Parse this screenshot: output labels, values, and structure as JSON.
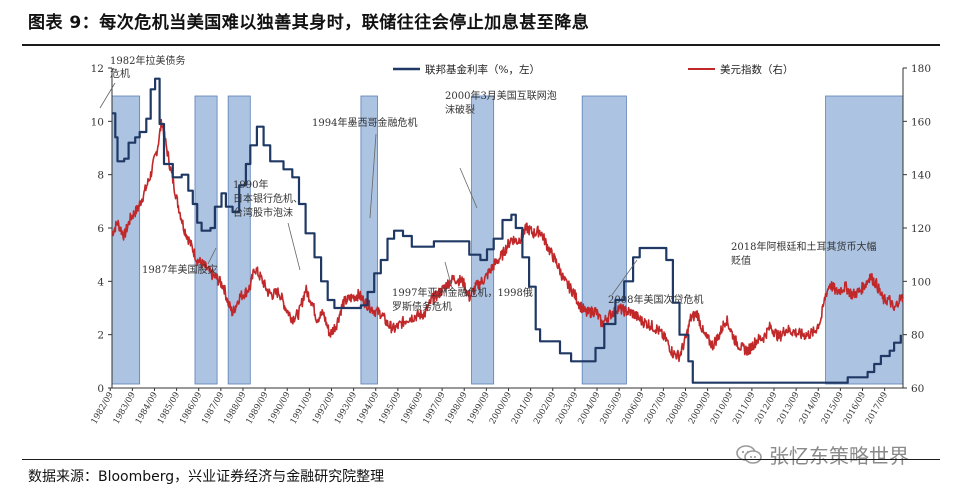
{
  "header": {
    "title": "图表 9：每次危机当美国难以独善其身时，联储往往会停止加息甚至降息"
  },
  "footer": {
    "source": "数据来源：Bloomberg，兴业证券经济与金融研究院整理"
  },
  "watermark": {
    "text": "张忆东策略世界",
    "icon": "wechat-icon"
  },
  "chart_data": {
    "type": "line",
    "title": "",
    "xlabel": "",
    "x_range": [
      1982.75,
      2018.5
    ],
    "ylim_left": [
      0,
      12
    ],
    "ylim_right": [
      60,
      180
    ],
    "left_ticks": [
      "0",
      "2",
      "4",
      "6",
      "8",
      "10",
      "12"
    ],
    "right_ticks": [
      "60",
      "80",
      "100",
      "120",
      "140",
      "160",
      "180"
    ],
    "x_ticks": [
      "1982/09",
      "1983/09",
      "1984/09",
      "1985/09",
      "1986/09",
      "1987/09",
      "1988/09",
      "1989/09",
      "1990/09",
      "1991/09",
      "1992/09",
      "1993/09",
      "1994/09",
      "1995/09",
      "1996/09",
      "1997/09",
      "1998/09",
      "1999/09",
      "2000/09",
      "2001/09",
      "2002/09",
      "2003/09",
      "2004/09",
      "2005/09",
      "2006/09",
      "2007/09",
      "2008/09",
      "2009/09",
      "2010/09",
      "2011/09",
      "2012/09",
      "2013/09",
      "2014/09",
      "2015/09",
      "2016/09",
      "2017/09"
    ],
    "colors": {
      "fed": "#1f3864",
      "dxy": "#c0282a",
      "band": "#9db8dc",
      "band_edge": "#5b7fb6"
    },
    "legend": [
      {
        "name": "联邦基金利率（%，左）",
        "color": "#1f3864",
        "placement": "top"
      },
      {
        "name": "美元指数（右）",
        "color": "#c0282a",
        "placement": "top"
      }
    ],
    "shaded_periods": [
      [
        1982.75,
        1984.0
      ],
      [
        1986.5,
        1987.5
      ],
      [
        1988.0,
        1989.0
      ],
      [
        1994.0,
        1994.75
      ],
      [
        1999.0,
        2000.0
      ],
      [
        2004.0,
        2006.0
      ],
      [
        2015.0,
        2018.5
      ]
    ],
    "series": [
      {
        "name": "联邦基金利率（%，左）",
        "axis": "left",
        "points": [
          [
            1982.75,
            10.3
          ],
          [
            1982.9,
            9.4
          ],
          [
            1983.0,
            8.5
          ],
          [
            1983.3,
            8.6
          ],
          [
            1983.5,
            9.2
          ],
          [
            1983.8,
            9.4
          ],
          [
            1984.0,
            9.6
          ],
          [
            1984.3,
            10.1
          ],
          [
            1984.5,
            11.2
          ],
          [
            1984.7,
            11.6
          ],
          [
            1984.9,
            9.9
          ],
          [
            1985.1,
            8.4
          ],
          [
            1985.5,
            7.9
          ],
          [
            1985.9,
            8.0
          ],
          [
            1986.2,
            7.4
          ],
          [
            1986.4,
            6.9
          ],
          [
            1986.6,
            6.2
          ],
          [
            1986.8,
            5.9
          ],
          [
            1987.2,
            6.0
          ],
          [
            1987.4,
            6.8
          ],
          [
            1987.7,
            7.3
          ],
          [
            1987.9,
            6.8
          ],
          [
            1988.2,
            6.6
          ],
          [
            1988.5,
            7.6
          ],
          [
            1988.8,
            8.4
          ],
          [
            1989.0,
            9.1
          ],
          [
            1989.3,
            9.8
          ],
          [
            1989.6,
            9.1
          ],
          [
            1989.9,
            8.5
          ],
          [
            1990.5,
            8.2
          ],
          [
            1990.9,
            7.9
          ],
          [
            1991.2,
            6.9
          ],
          [
            1991.5,
            5.8
          ],
          [
            1991.9,
            4.9
          ],
          [
            1992.2,
            4.0
          ],
          [
            1992.5,
            3.3
          ],
          [
            1992.8,
            3.0
          ],
          [
            1993.5,
            3.0
          ],
          [
            1994.0,
            3.1
          ],
          [
            1994.3,
            3.6
          ],
          [
            1994.6,
            4.3
          ],
          [
            1994.9,
            4.8
          ],
          [
            1995.2,
            5.6
          ],
          [
            1995.5,
            5.9
          ],
          [
            1995.9,
            5.7
          ],
          [
            1996.3,
            5.3
          ],
          [
            1997.0,
            5.3
          ],
          [
            1997.3,
            5.5
          ],
          [
            1998.0,
            5.5
          ],
          [
            1998.7,
            5.5
          ],
          [
            1998.9,
            5.0
          ],
          [
            1999.4,
            4.8
          ],
          [
            1999.7,
            5.2
          ],
          [
            2000.0,
            5.6
          ],
          [
            2000.4,
            6.3
          ],
          [
            2000.8,
            6.5
          ],
          [
            2001.0,
            6.0
          ],
          [
            2001.3,
            4.9
          ],
          [
            2001.6,
            3.8
          ],
          [
            2001.9,
            2.2
          ],
          [
            2002.1,
            1.75
          ],
          [
            2002.8,
            1.75
          ],
          [
            2003.0,
            1.3
          ],
          [
            2003.5,
            1.0
          ],
          [
            2004.3,
            1.0
          ],
          [
            2004.6,
            1.5
          ],
          [
            2005.0,
            2.4
          ],
          [
            2005.5,
            3.3
          ],
          [
            2005.9,
            4.0
          ],
          [
            2006.3,
            4.9
          ],
          [
            2006.6,
            5.25
          ],
          [
            2007.5,
            5.25
          ],
          [
            2007.8,
            4.8
          ],
          [
            2008.1,
            3.2
          ],
          [
            2008.4,
            2.0
          ],
          [
            2008.8,
            1.0
          ],
          [
            2009.0,
            0.2
          ],
          [
            2015.9,
            0.2
          ],
          [
            2016.0,
            0.4
          ],
          [
            2016.9,
            0.6
          ],
          [
            2017.2,
            0.9
          ],
          [
            2017.5,
            1.2
          ],
          [
            2017.9,
            1.4
          ],
          [
            2018.1,
            1.7
          ],
          [
            2018.4,
            2.0
          ]
        ]
      },
      {
        "name": "美元指数（右）",
        "axis": "right",
        "points": [
          [
            1982.75,
            118
          ],
          [
            1983.0,
            122
          ],
          [
            1983.3,
            117
          ],
          [
            1983.6,
            124
          ],
          [
            1983.9,
            127
          ],
          [
            1984.2,
            133
          ],
          [
            1984.5,
            140
          ],
          [
            1984.8,
            150
          ],
          [
            1985.0,
            160
          ],
          [
            1985.15,
            153
          ],
          [
            1985.4,
            142
          ],
          [
            1985.7,
            130
          ],
          [
            1986.0,
            120
          ],
          [
            1986.3,
            114
          ],
          [
            1986.6,
            108
          ],
          [
            1986.9,
            106
          ],
          [
            1987.2,
            103
          ],
          [
            1987.5,
            101
          ],
          [
            1987.8,
            98
          ],
          [
            1988.0,
            92
          ],
          [
            1988.2,
            88
          ],
          [
            1988.5,
            94
          ],
          [
            1988.8,
            96
          ],
          [
            1989.0,
            98
          ],
          [
            1989.2,
            105
          ],
          [
            1989.5,
            101
          ],
          [
            1989.8,
            96
          ],
          [
            1990.0,
            95
          ],
          [
            1990.3,
            96
          ],
          [
            1990.6,
            90
          ],
          [
            1990.9,
            86
          ],
          [
            1991.2,
            88
          ],
          [
            1991.5,
            97
          ],
          [
            1991.8,
            92
          ],
          [
            1992.0,
            86
          ],
          [
            1992.3,
            88
          ],
          [
            1992.6,
            80
          ],
          [
            1992.9,
            84
          ],
          [
            1993.2,
            92
          ],
          [
            1993.6,
            94
          ],
          [
            1993.9,
            95
          ],
          [
            1994.2,
            92
          ],
          [
            1994.6,
            89
          ],
          [
            1994.9,
            88
          ],
          [
            1995.2,
            84
          ],
          [
            1995.5,
            82
          ],
          [
            1995.8,
            84
          ],
          [
            1996.1,
            86
          ],
          [
            1996.5,
            87
          ],
          [
            1996.9,
            88
          ],
          [
            1997.2,
            93
          ],
          [
            1997.6,
            96
          ],
          [
            1997.9,
            99
          ],
          [
            1998.2,
            101
          ],
          [
            1998.6,
            100
          ],
          [
            1998.9,
            94
          ],
          [
            1999.2,
            98
          ],
          [
            1999.6,
            101
          ],
          [
            2000.0,
            106
          ],
          [
            2000.4,
            110
          ],
          [
            2000.8,
            116
          ],
          [
            2001.1,
            115
          ],
          [
            2001.5,
            120
          ],
          [
            2001.8,
            118
          ],
          [
            2002.1,
            119
          ],
          [
            2002.5,
            112
          ],
          [
            2002.9,
            106
          ],
          [
            2003.2,
            100
          ],
          [
            2003.6,
            96
          ],
          [
            2003.9,
            91
          ],
          [
            2004.2,
            88
          ],
          [
            2004.6,
            89
          ],
          [
            2004.9,
            84
          ],
          [
            2005.2,
            87
          ],
          [
            2005.6,
            90
          ],
          [
            2005.9,
            89
          ],
          [
            2006.3,
            88
          ],
          [
            2006.7,
            85
          ],
          [
            2007.0,
            84
          ],
          [
            2007.4,
            82
          ],
          [
            2007.8,
            78
          ],
          [
            2008.1,
            73
          ],
          [
            2008.4,
            72
          ],
          [
            2008.7,
            79
          ],
          [
            2008.9,
            86
          ],
          [
            2009.2,
            88
          ],
          [
            2009.5,
            80
          ],
          [
            2009.9,
            76
          ],
          [
            2010.2,
            80
          ],
          [
            2010.5,
            86
          ],
          [
            2010.9,
            78
          ],
          [
            2011.2,
            75
          ],
          [
            2011.5,
            74
          ],
          [
            2011.9,
            78
          ],
          [
            2012.2,
            79
          ],
          [
            2012.5,
            83
          ],
          [
            2012.9,
            79
          ],
          [
            2013.2,
            82
          ],
          [
            2013.6,
            81
          ],
          [
            2013.9,
            80
          ],
          [
            2014.2,
            80
          ],
          [
            2014.5,
            81
          ],
          [
            2014.8,
            86
          ],
          [
            2015.0,
            95
          ],
          [
            2015.2,
            99
          ],
          [
            2015.5,
            96
          ],
          [
            2015.9,
            98
          ],
          [
            2016.2,
            95
          ],
          [
            2016.5,
            96
          ],
          [
            2016.9,
            100
          ],
          [
            2017.0,
            102
          ],
          [
            2017.3,
            99
          ],
          [
            2017.6,
            93
          ],
          [
            2017.9,
            93
          ],
          [
            2018.1,
            89
          ],
          [
            2018.3,
            93
          ],
          [
            2018.5,
            94
          ]
        ]
      }
    ],
    "annotations": [
      {
        "id": "1982",
        "lines": [
          "1982年拉美债务",
          "危机"
        ]
      },
      {
        "id": "1987",
        "lines": [
          "1987年美国股灾"
        ]
      },
      {
        "id": "1990",
        "lines": [
          "1990年",
          "日本银行危机、",
          "台湾股市泡沫"
        ]
      },
      {
        "id": "1994",
        "lines": [
          "1994年墨西哥金融危机"
        ]
      },
      {
        "id": "1997",
        "lines": [
          "1997年亚洲金融危机，1998俄",
          "罗斯债务危机"
        ]
      },
      {
        "id": "2000",
        "lines": [
          "2000年3月美国互联网泡",
          "沫破裂"
        ]
      },
      {
        "id": "2008",
        "lines": [
          "2008年美国次贷危机"
        ]
      },
      {
        "id": "2018",
        "lines": [
          "2018年阿根廷和土耳其货币大幅",
          "贬值"
        ]
      }
    ]
  }
}
